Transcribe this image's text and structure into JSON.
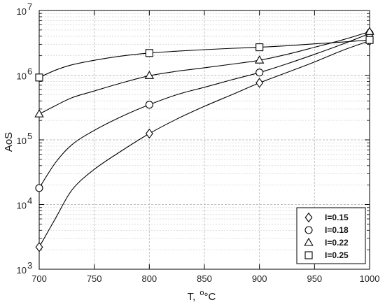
{
  "chart_data": {
    "type": "line",
    "xlabel": "T,",
    "xlabel_unit": "°C",
    "ylabel": "AoS",
    "xlim": [
      700,
      1000
    ],
    "ylim": [
      1000,
      10000000
    ],
    "yscale": "log",
    "grid": true,
    "legend_position": "bottom-right",
    "x_ticks": [
      700,
      750,
      800,
      850,
      900,
      950,
      1000
    ],
    "x_tick_labels": [
      "700",
      "750",
      "800",
      "850",
      "900",
      "950",
      "1000"
    ],
    "y_ticks": [
      1000,
      10000,
      100000,
      1000000,
      10000000
    ],
    "y_tick_bases": [
      "10",
      "10",
      "10",
      "10",
      "10"
    ],
    "y_tick_exponents": [
      "3",
      "4",
      "5",
      "6",
      "7"
    ],
    "series": [
      {
        "name": "I=0.15",
        "marker": "diamond",
        "markers": [
          {
            "x": 700,
            "y": 2200
          },
          {
            "x": 800,
            "y": 125000
          },
          {
            "x": 900,
            "y": 760000
          },
          {
            "x": 1000,
            "y": 3400000
          }
        ],
        "curve": [
          {
            "x": 700,
            "y": 2200
          },
          {
            "x": 715,
            "y": 6200
          },
          {
            "x": 730,
            "y": 17000
          },
          {
            "x": 750,
            "y": 35000
          },
          {
            "x": 775,
            "y": 68000
          },
          {
            "x": 800,
            "y": 125000
          },
          {
            "x": 825,
            "y": 210000
          },
          {
            "x": 850,
            "y": 330000
          },
          {
            "x": 875,
            "y": 500000
          },
          {
            "x": 900,
            "y": 760000
          },
          {
            "x": 925,
            "y": 1100000
          },
          {
            "x": 950,
            "y": 1600000
          },
          {
            "x": 975,
            "y": 2400000
          },
          {
            "x": 1000,
            "y": 3400000
          }
        ]
      },
      {
        "name": "I=0.18",
        "marker": "circle",
        "markers": [
          {
            "x": 700,
            "y": 18000
          },
          {
            "x": 800,
            "y": 350000
          },
          {
            "x": 900,
            "y": 1100000
          },
          {
            "x": 1000,
            "y": 4400000
          }
        ],
        "curve": [
          {
            "x": 700,
            "y": 18000
          },
          {
            "x": 715,
            "y": 45000
          },
          {
            "x": 730,
            "y": 85000
          },
          {
            "x": 750,
            "y": 140000
          },
          {
            "x": 775,
            "y": 230000
          },
          {
            "x": 800,
            "y": 350000
          },
          {
            "x": 825,
            "y": 500000
          },
          {
            "x": 850,
            "y": 650000
          },
          {
            "x": 875,
            "y": 850000
          },
          {
            "x": 900,
            "y": 1100000
          },
          {
            "x": 925,
            "y": 1500000
          },
          {
            "x": 950,
            "y": 2100000
          },
          {
            "x": 975,
            "y": 3000000
          },
          {
            "x": 1000,
            "y": 4400000
          }
        ]
      },
      {
        "name": "I=0.22",
        "marker": "triangle",
        "markers": [
          {
            "x": 700,
            "y": 250000
          },
          {
            "x": 800,
            "y": 980000
          },
          {
            "x": 900,
            "y": 1700000
          },
          {
            "x": 1000,
            "y": 4700000
          }
        ],
        "curve": [
          {
            "x": 700,
            "y": 250000
          },
          {
            "x": 715,
            "y": 340000
          },
          {
            "x": 730,
            "y": 450000
          },
          {
            "x": 750,
            "y": 570000
          },
          {
            "x": 775,
            "y": 760000
          },
          {
            "x": 800,
            "y": 980000
          },
          {
            "x": 825,
            "y": 1150000
          },
          {
            "x": 850,
            "y": 1300000
          },
          {
            "x": 875,
            "y": 1480000
          },
          {
            "x": 900,
            "y": 1700000
          },
          {
            "x": 925,
            "y": 2100000
          },
          {
            "x": 950,
            "y": 2700000
          },
          {
            "x": 975,
            "y": 3500000
          },
          {
            "x": 1000,
            "y": 4700000
          }
        ]
      },
      {
        "name": "I=0.25",
        "marker": "square",
        "markers": [
          {
            "x": 700,
            "y": 920000
          },
          {
            "x": 800,
            "y": 2200000
          },
          {
            "x": 900,
            "y": 2700000
          },
          {
            "x": 1000,
            "y": 3500000
          }
        ],
        "curve": [
          {
            "x": 700,
            "y": 920000
          },
          {
            "x": 715,
            "y": 1200000
          },
          {
            "x": 730,
            "y": 1450000
          },
          {
            "x": 750,
            "y": 1700000
          },
          {
            "x": 775,
            "y": 1980000
          },
          {
            "x": 800,
            "y": 2200000
          },
          {
            "x": 825,
            "y": 2350000
          },
          {
            "x": 850,
            "y": 2480000
          },
          {
            "x": 875,
            "y": 2600000
          },
          {
            "x": 900,
            "y": 2700000
          },
          {
            "x": 925,
            "y": 2850000
          },
          {
            "x": 950,
            "y": 3050000
          },
          {
            "x": 975,
            "y": 3250000
          },
          {
            "x": 1000,
            "y": 3500000
          }
        ]
      }
    ]
  }
}
